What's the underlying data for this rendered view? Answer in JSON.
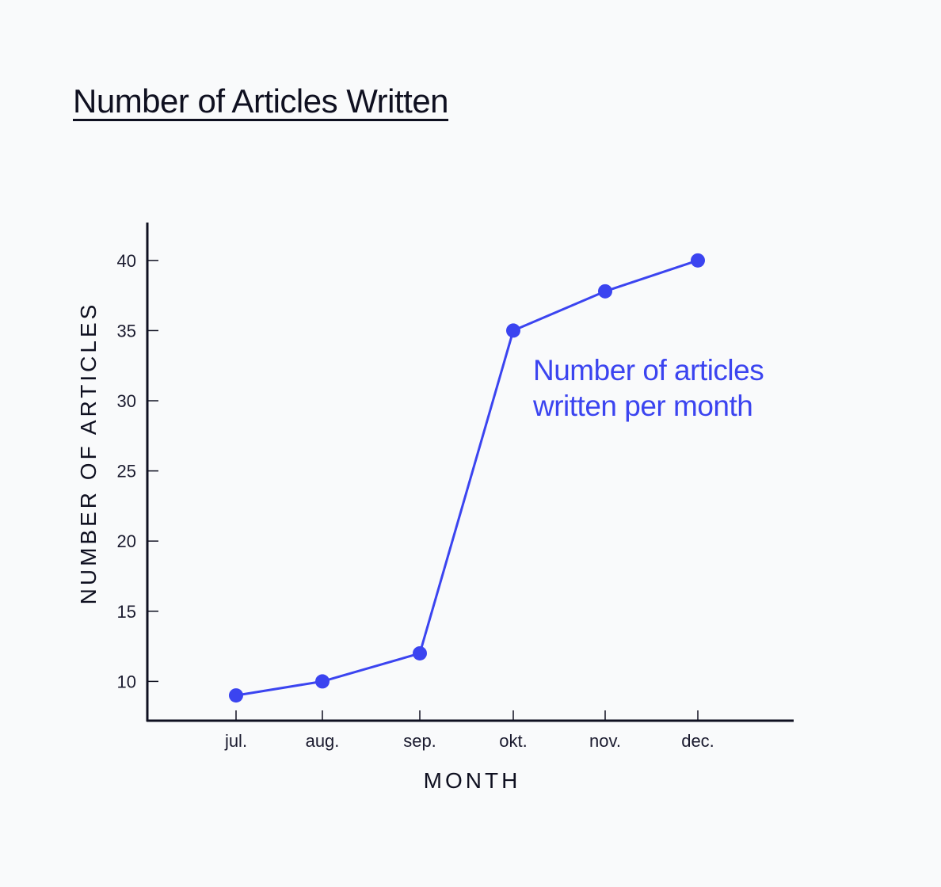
{
  "chart_data": {
    "type": "line",
    "title": "Number of Articles Written",
    "xlabel": "MONTH",
    "ylabel": "NUMBER OF ARTICLES",
    "categories": [
      "jul.",
      "aug.",
      "sep.",
      "okt.",
      "nov.",
      "dec."
    ],
    "series": [
      {
        "values": [
          9,
          10,
          12,
          35,
          37.8,
          40
        ]
      }
    ],
    "yticks": [
      10,
      15,
      20,
      25,
      30,
      35,
      40
    ],
    "ylim": [
      7.2,
      42.7
    ],
    "grid": false,
    "annotation": [
      "Number of articles",
      "written per month"
    ],
    "colors": {
      "series": "#3b44f0",
      "axis": "#0f1020",
      "background": "#f9fafb"
    }
  }
}
